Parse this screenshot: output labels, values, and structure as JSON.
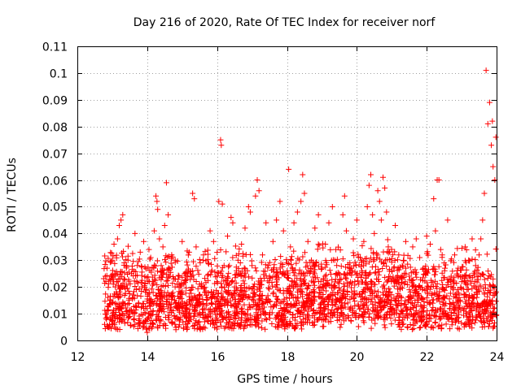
{
  "chart_data": {
    "type": "scatter",
    "title": "Day 216 of 2020, Rate Of TEC Index for receiver norf",
    "xlabel": "GPS time / hours",
    "ylabel": "ROTI / TECUs",
    "xlim": [
      12,
      24
    ],
    "ylim": [
      0,
      0.11
    ],
    "xticks": [
      12,
      14,
      16,
      18,
      20,
      22,
      24
    ],
    "xtick_labels": [
      "12",
      "14",
      "16",
      "18",
      "20",
      "22",
      "24"
    ],
    "yticks": [
      0,
      0.01,
      0.02,
      0.03,
      0.04,
      0.05,
      0.06,
      0.07,
      0.08,
      0.09,
      0.1,
      0.11
    ],
    "ytick_labels": [
      "0",
      "0.01",
      "0.02",
      "0.03",
      "0.04",
      "0.05",
      "0.06",
      "0.07",
      "0.08",
      "0.09",
      "0.1",
      "0.11"
    ],
    "grid": true,
    "marker": "+",
    "color": "#ff0000",
    "series": [
      {
        "name": "ROTI",
        "points": [
          [
            12.78,
            0.006
          ],
          [
            12.8,
            0.024
          ],
          [
            12.85,
            0.027
          ],
          [
            12.9,
            0.005
          ],
          [
            12.95,
            0.015
          ],
          [
            13.0,
            0.03
          ],
          [
            13.05,
            0.036
          ],
          [
            13.1,
            0.012
          ],
          [
            13.15,
            0.038
          ],
          [
            13.2,
            0.043
          ],
          [
            13.25,
            0.045
          ],
          [
            13.3,
            0.047
          ],
          [
            13.35,
            0.02
          ],
          [
            13.4,
            0.028
          ],
          [
            13.45,
            0.03
          ],
          [
            13.5,
            0.009
          ],
          [
            13.55,
            0.025
          ],
          [
            13.6,
            0.017
          ],
          [
            13.65,
            0.04
          ],
          [
            13.7,
            0.022
          ],
          [
            13.75,
            0.014
          ],
          [
            13.8,
            0.033
          ],
          [
            13.85,
            0.02
          ],
          [
            13.9,
            0.037
          ],
          [
            13.95,
            0.018
          ],
          [
            14.0,
            0.003
          ],
          [
            14.05,
            0.034
          ],
          [
            14.1,
            0.031
          ],
          [
            14.15,
            0.022
          ],
          [
            14.2,
            0.041
          ],
          [
            14.25,
            0.054
          ],
          [
            14.28,
            0.052
          ],
          [
            14.3,
            0.049
          ],
          [
            14.35,
            0.038
          ],
          [
            14.4,
            0.028
          ],
          [
            14.45,
            0.035
          ],
          [
            14.5,
            0.043
          ],
          [
            14.55,
            0.059
          ],
          [
            14.6,
            0.047
          ],
          [
            14.65,
            0.024
          ],
          [
            14.7,
            0.032
          ],
          [
            14.8,
            0.03
          ],
          [
            14.9,
            0.014
          ],
          [
            15.0,
            0.037
          ],
          [
            15.1,
            0.025
          ],
          [
            15.2,
            0.033
          ],
          [
            15.3,
            0.055
          ],
          [
            15.35,
            0.053
          ],
          [
            15.4,
            0.035
          ],
          [
            15.5,
            0.021
          ],
          [
            15.6,
            0.03
          ],
          [
            15.7,
            0.015
          ],
          [
            15.8,
            0.041
          ],
          [
            15.9,
            0.037
          ],
          [
            16.0,
            0.005
          ],
          [
            16.05,
            0.052
          ],
          [
            16.1,
            0.075
          ],
          [
            16.12,
            0.073
          ],
          [
            16.15,
            0.051
          ],
          [
            16.2,
            0.028
          ],
          [
            16.3,
            0.039
          ],
          [
            16.4,
            0.046
          ],
          [
            16.45,
            0.044
          ],
          [
            16.5,
            0.02
          ],
          [
            16.6,
            0.03
          ],
          [
            16.7,
            0.036
          ],
          [
            16.8,
            0.042
          ],
          [
            16.9,
            0.05
          ],
          [
            16.95,
            0.048
          ],
          [
            17.0,
            0.028
          ],
          [
            17.1,
            0.054
          ],
          [
            17.15,
            0.06
          ],
          [
            17.2,
            0.056
          ],
          [
            17.3,
            0.032
          ],
          [
            17.4,
            0.044
          ],
          [
            17.5,
            0.024
          ],
          [
            17.6,
            0.037
          ],
          [
            17.7,
            0.045
          ],
          [
            17.8,
            0.052
          ],
          [
            17.9,
            0.041
          ],
          [
            18.0,
            0.029
          ],
          [
            18.05,
            0.064
          ],
          [
            18.1,
            0.035
          ],
          [
            18.2,
            0.044
          ],
          [
            18.3,
            0.048
          ],
          [
            18.4,
            0.052
          ],
          [
            18.45,
            0.062
          ],
          [
            18.5,
            0.055
          ],
          [
            18.6,
            0.037
          ],
          [
            18.7,
            0.03
          ],
          [
            18.8,
            0.042
          ],
          [
            18.9,
            0.047
          ],
          [
            19.0,
            0.027
          ],
          [
            19.1,
            0.036
          ],
          [
            19.2,
            0.044
          ],
          [
            19.3,
            0.05
          ],
          [
            19.4,
            0.034
          ],
          [
            19.5,
            0.025
          ],
          [
            19.6,
            0.047
          ],
          [
            19.65,
            0.054
          ],
          [
            19.7,
            0.041
          ],
          [
            19.8,
            0.029
          ],
          [
            19.9,
            0.038
          ],
          [
            20.0,
            0.045
          ],
          [
            20.1,
            0.031
          ],
          [
            20.2,
            0.037
          ],
          [
            20.3,
            0.05
          ],
          [
            20.35,
            0.058
          ],
          [
            20.4,
            0.062
          ],
          [
            20.45,
            0.047
          ],
          [
            20.5,
            0.04
          ],
          [
            20.6,
            0.056
          ],
          [
            20.65,
            0.052
          ],
          [
            20.7,
            0.045
          ],
          [
            20.75,
            0.061
          ],
          [
            20.8,
            0.057
          ],
          [
            20.85,
            0.048
          ],
          [
            20.9,
            0.035
          ],
          [
            21.0,
            0.026
          ],
          [
            21.1,
            0.043
          ],
          [
            21.2,
            0.032
          ],
          [
            21.3,
            0.028
          ],
          [
            21.4,
            0.037
          ],
          [
            21.5,
            0.024
          ],
          [
            21.6,
            0.035
          ],
          [
            21.7,
            0.038
          ],
          [
            21.8,
            0.031
          ],
          [
            21.9,
            0.027
          ],
          [
            22.0,
            0.039
          ],
          [
            22.1,
            0.036
          ],
          [
            22.2,
            0.053
          ],
          [
            22.25,
            0.041
          ],
          [
            22.3,
            0.06
          ],
          [
            22.35,
            0.06
          ],
          [
            22.4,
            0.034
          ],
          [
            22.5,
            0.029
          ],
          [
            22.6,
            0.045
          ],
          [
            22.7,
            0.024
          ],
          [
            22.8,
            0.032
          ],
          [
            22.9,
            0.027
          ],
          [
            23.0,
            0.022
          ],
          [
            23.1,
            0.035
          ],
          [
            23.2,
            0.03
          ],
          [
            23.3,
            0.038
          ],
          [
            23.4,
            0.028
          ],
          [
            23.5,
            0.032
          ],
          [
            23.55,
            0.038
          ],
          [
            23.6,
            0.045
          ],
          [
            23.65,
            0.055
          ],
          [
            23.7,
            0.101
          ],
          [
            23.75,
            0.081
          ],
          [
            23.8,
            0.089
          ],
          [
            23.85,
            0.073
          ],
          [
            23.88,
            0.082
          ],
          [
            23.9,
            0.065
          ],
          [
            23.95,
            0.06
          ],
          [
            23.98,
            0.076
          ]
        ]
      }
    ]
  }
}
